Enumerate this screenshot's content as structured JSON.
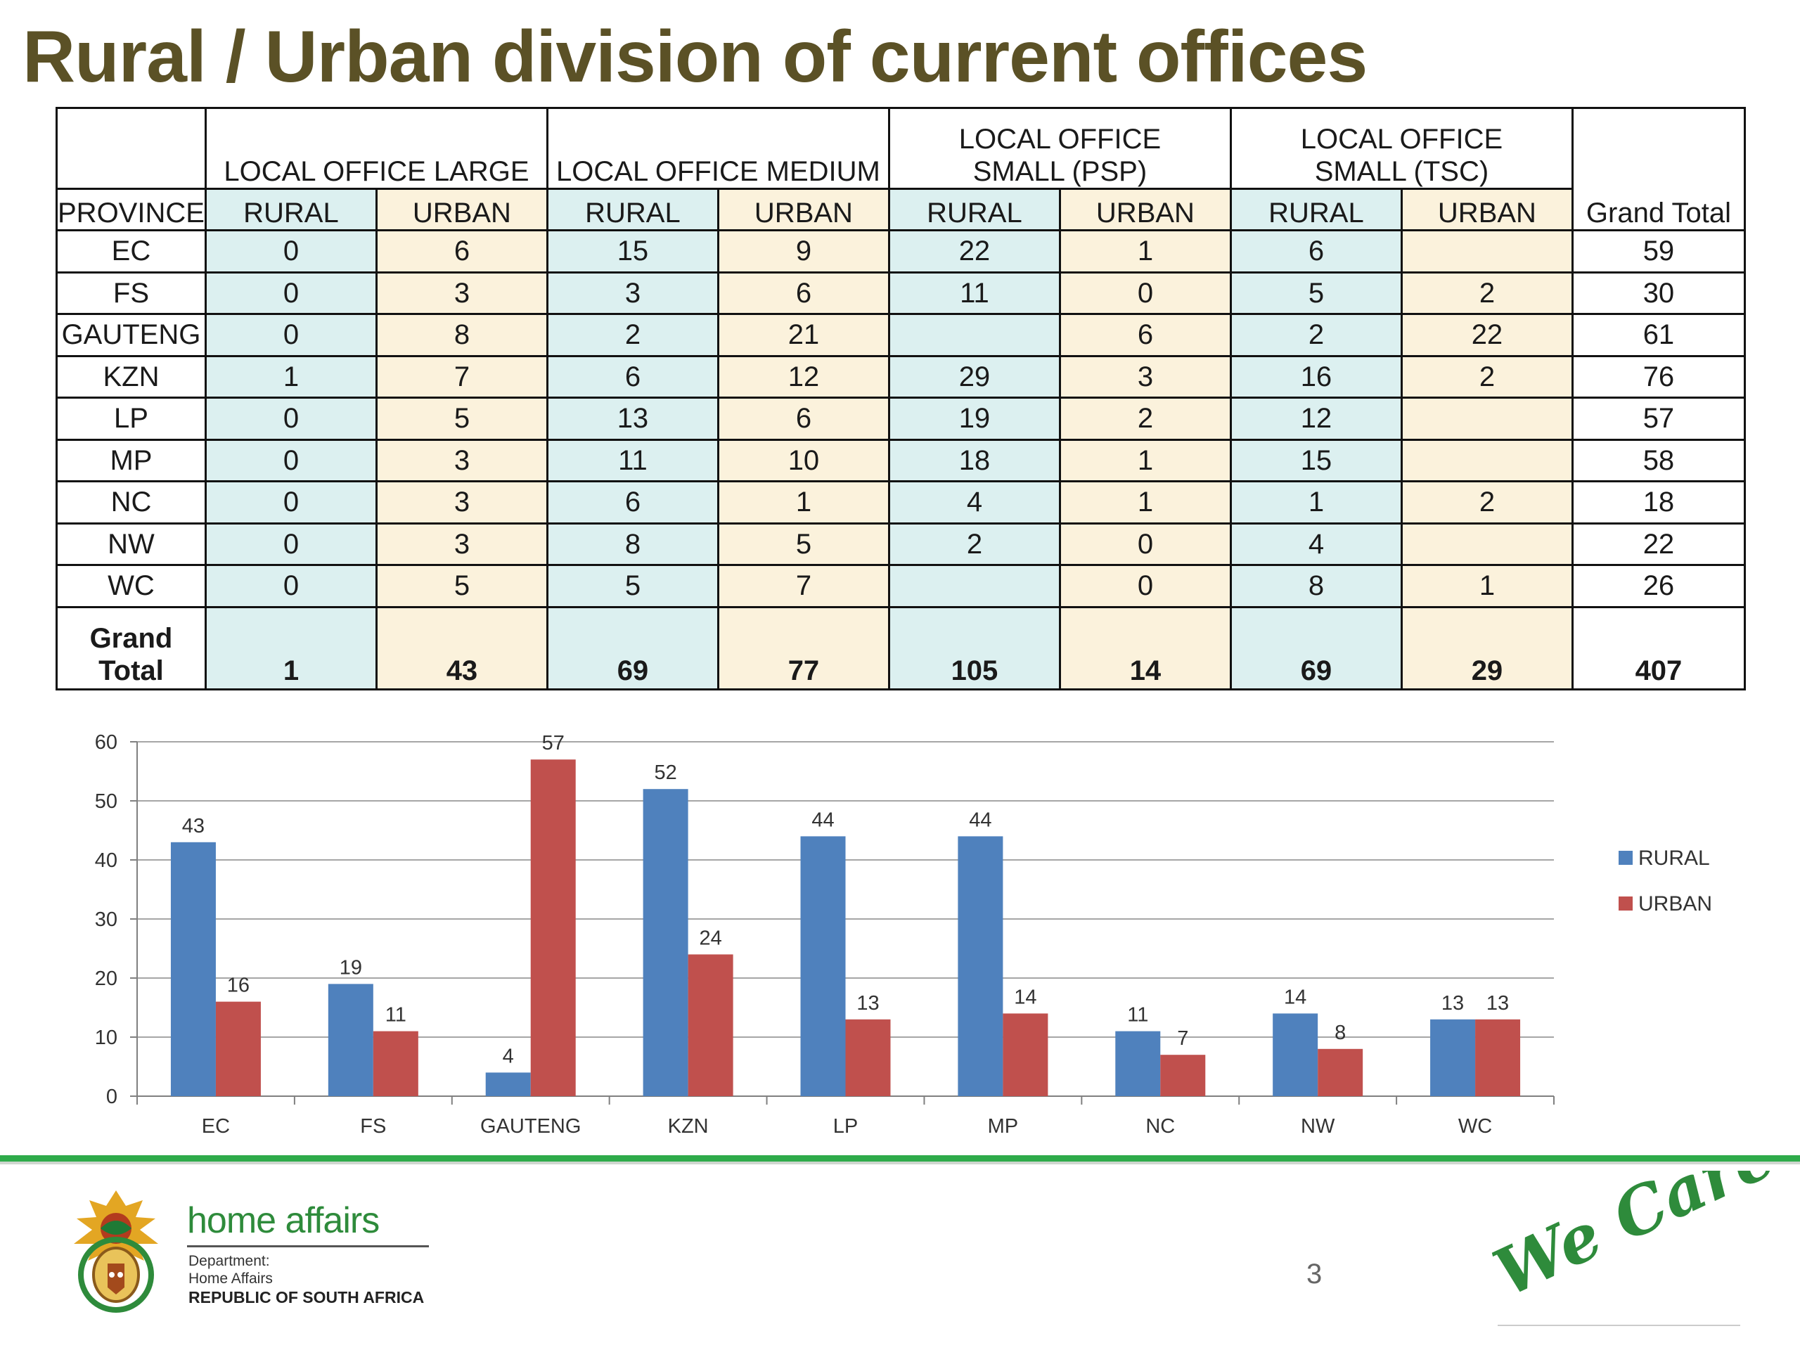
{
  "title": "Rural / Urban division of current offices",
  "table": {
    "group_headers": [
      "LOCAL OFFICE LARGE",
      "LOCAL OFFICE MEDIUM",
      "LOCAL OFFICE SMALL (PSP)",
      "LOCAL OFFICE SMALL (TSC)"
    ],
    "sub_headers": [
      "RURAL",
      "URBAN"
    ],
    "province_header": "PROVINCE",
    "total_header": "Grand Total",
    "rows": [
      {
        "province": "EC",
        "cells": [
          "0",
          "6",
          "15",
          "9",
          "22",
          "1",
          "6",
          ""
        ],
        "total": "59"
      },
      {
        "province": "FS",
        "cells": [
          "0",
          "3",
          "3",
          "6",
          "11",
          "0",
          "5",
          "2"
        ],
        "total": "30"
      },
      {
        "province": "GAUTENG",
        "cells": [
          "0",
          "8",
          "2",
          "21",
          "",
          "6",
          "2",
          "22"
        ],
        "total": "61"
      },
      {
        "province": "KZN",
        "cells": [
          "1",
          "7",
          "6",
          "12",
          "29",
          "3",
          "16",
          "2"
        ],
        "total": "76"
      },
      {
        "province": "LP",
        "cells": [
          "0",
          "5",
          "13",
          "6",
          "19",
          "2",
          "12",
          ""
        ],
        "total": "57"
      },
      {
        "province": "MP",
        "cells": [
          "0",
          "3",
          "11",
          "10",
          "18",
          "1",
          "15",
          ""
        ],
        "total": "58"
      },
      {
        "province": "NC",
        "cells": [
          "0",
          "3",
          "6",
          "1",
          "4",
          "1",
          "1",
          "2"
        ],
        "total": "18"
      },
      {
        "province": "NW",
        "cells": [
          "0",
          "3",
          "8",
          "5",
          "2",
          "0",
          "4",
          ""
        ],
        "total": "22"
      },
      {
        "province": "WC",
        "cells": [
          "0",
          "5",
          "5",
          "7",
          "",
          "0",
          "8",
          "1"
        ],
        "total": "26"
      }
    ],
    "grand_total_label": "Grand Total",
    "grand_total_cells": [
      "1",
      "43",
      "69",
      "77",
      "105",
      "14",
      "69",
      "29"
    ],
    "grand_total": "407"
  },
  "chart_data": {
    "type": "bar",
    "categories": [
      "EC",
      "FS",
      "GAUTENG",
      "KZN",
      "LP",
      "MP",
      "NC",
      "NW",
      "WC"
    ],
    "series": [
      {
        "name": "RURAL",
        "color": "#4f81bd",
        "values": [
          43,
          19,
          4,
          52,
          44,
          44,
          11,
          14,
          13
        ]
      },
      {
        "name": "URBAN",
        "color": "#c0504d",
        "values": [
          16,
          11,
          57,
          24,
          13,
          14,
          7,
          8,
          13
        ]
      }
    ],
    "yticks": [
      0,
      10,
      20,
      30,
      40,
      50,
      60
    ],
    "ylim": [
      0,
      60
    ],
    "legend_position": "right",
    "grid": true
  },
  "footer": {
    "org_name": "home affairs",
    "dept_line1": "Department:",
    "dept_line2": "Home Affairs",
    "country": "REPUBLIC OF SOUTH AFRICA",
    "page_number": "3",
    "slogan": "We Care!",
    "green_color": "#2eab4a"
  }
}
